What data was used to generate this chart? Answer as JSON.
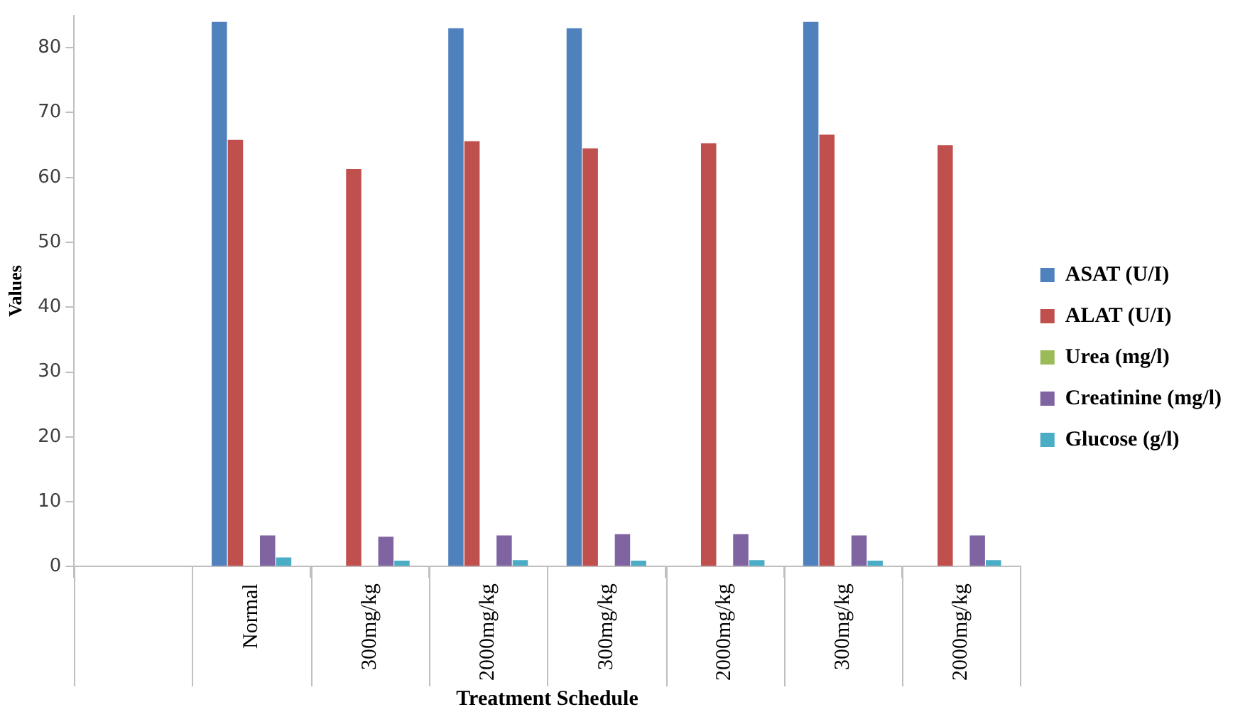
{
  "chart_data": {
    "type": "bar",
    "xlabel": "Treatment Schedule",
    "ylabel": "Values",
    "categories": [
      null,
      "Normal",
      "300mg/kg",
      "2000mg/kg",
      "300mg/kg",
      "2000mg/kg",
      "300mg/kg",
      "2000mg/kg"
    ],
    "series": [
      {
        "name": "ASAT (U/I)",
        "color": "#4f81bd",
        "values": [
          null,
          84,
          null,
          83,
          83,
          null,
          84,
          null
        ]
      },
      {
        "name": "ALAT (U/I)",
        "color": "#c0504d",
        "values": [
          null,
          65.8,
          61.3,
          65.6,
          64.5,
          65.3,
          66.6,
          65
        ]
      },
      {
        "name": "Urea (mg/l)",
        "color": "#9bbb59",
        "values": [
          null,
          null,
          null,
          null,
          null,
          null,
          null,
          null
        ]
      },
      {
        "name": "Creatinine (mg/l)",
        "color": "#8064a2",
        "values": [
          null,
          4.8,
          4.6,
          4.8,
          5,
          5,
          4.8,
          4.8
        ]
      },
      {
        "name": "Glucose (g/l)",
        "color": "#4bacc6",
        "values": [
          null,
          1.4,
          0.9,
          1,
          0.9,
          1,
          0.9,
          1
        ]
      }
    ],
    "ylim": [
      0,
      85
    ],
    "yticks": [
      0,
      10,
      20,
      30,
      40,
      50,
      60,
      70,
      80
    ],
    "grid": false,
    "legend": "right"
  }
}
